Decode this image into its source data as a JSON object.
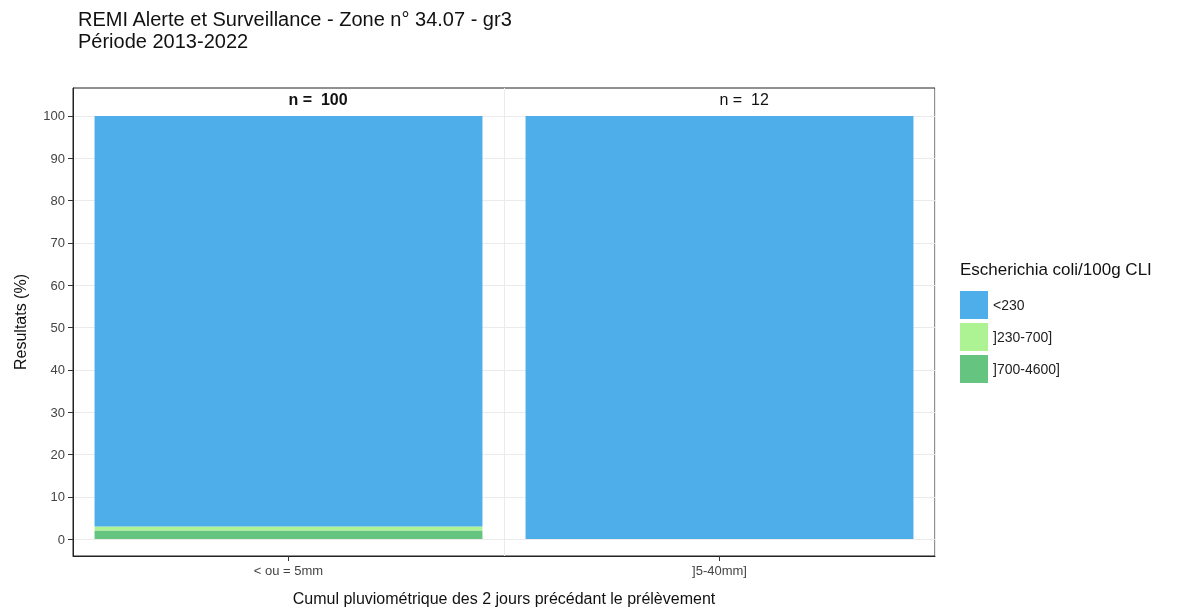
{
  "chart_data": {
    "type": "bar",
    "title": "REMI Alerte et Surveillance - Zone n° 34.07 - gr3",
    "subtitle": "Période 2013-2022",
    "xlabel": "Cumul pluviométrique des 2 jours précédant le prélèvement",
    "ylabel": "Resultats (%)",
    "legend_title": "Escherichia coli/100g CLI",
    "categories": [
      "< ou = 5mm",
      "]5-40mm]"
    ],
    "stacked": true,
    "series": [
      {
        "name": "]700-4600]",
        "color": "#66c481",
        "values": [
          2,
          0
        ]
      },
      {
        "name": "]230-700]",
        "color": "#adf293",
        "values": [
          1,
          0
        ]
      },
      {
        "name": "<230",
        "color": "#4daeea",
        "values": [
          97,
          100
        ]
      }
    ],
    "ylim": [
      -4,
      106.6
    ],
    "yticks": [
      0,
      10,
      20,
      30,
      40,
      50,
      60,
      70,
      80,
      90,
      100
    ],
    "grid": true,
    "legend": "right",
    "annotations": [
      "n =  100",
      "n =  12"
    ]
  }
}
